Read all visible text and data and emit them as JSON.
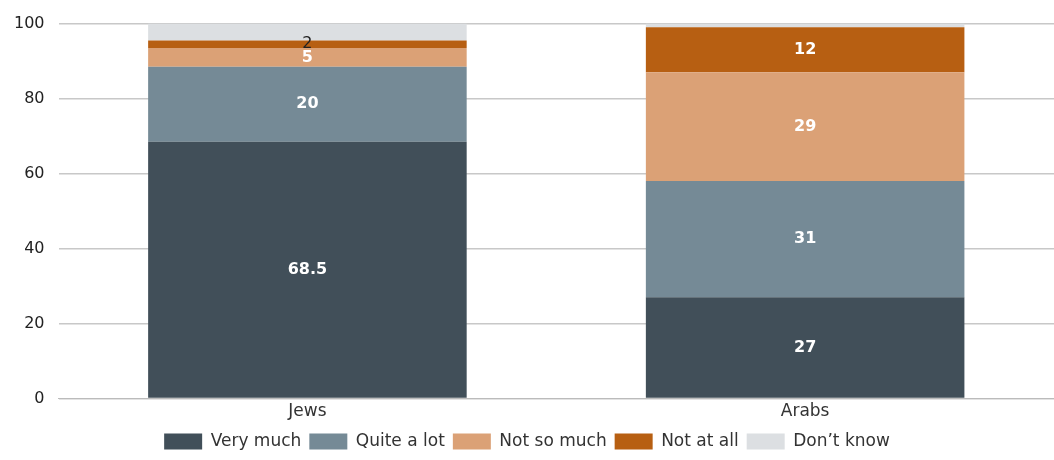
{
  "chart_data": {
    "type": "bar",
    "stacked": true,
    "categories": [
      "Jews",
      "Arabs"
    ],
    "series": [
      {
        "name": "Very much",
        "color": "#414f59",
        "values": [
          68.5,
          27
        ],
        "value_labels": [
          "68.5",
          "27"
        ]
      },
      {
        "name": "Quite a lot",
        "color": "#758a96",
        "values": [
          20,
          31
        ],
        "value_labels": [
          "20",
          "31"
        ]
      },
      {
        "name": "Not so much",
        "color": "#dba176",
        "values": [
          5,
          29
        ],
        "value_labels": [
          "5",
          "29"
        ]
      },
      {
        "name": "Not at all",
        "color": "#b75f12",
        "values": [
          2,
          12
        ],
        "value_labels": [
          "2",
          "12"
        ]
      },
      {
        "name": "Don’t know",
        "color": "#dcdfe2",
        "values": [
          4.5,
          1
        ],
        "value_labels": [
          null,
          null
        ]
      }
    ],
    "ylim": [
      0,
      100
    ],
    "yticks": [
      0,
      20,
      40,
      60,
      80,
      100
    ],
    "grid": "y",
    "legend": "bottom"
  }
}
